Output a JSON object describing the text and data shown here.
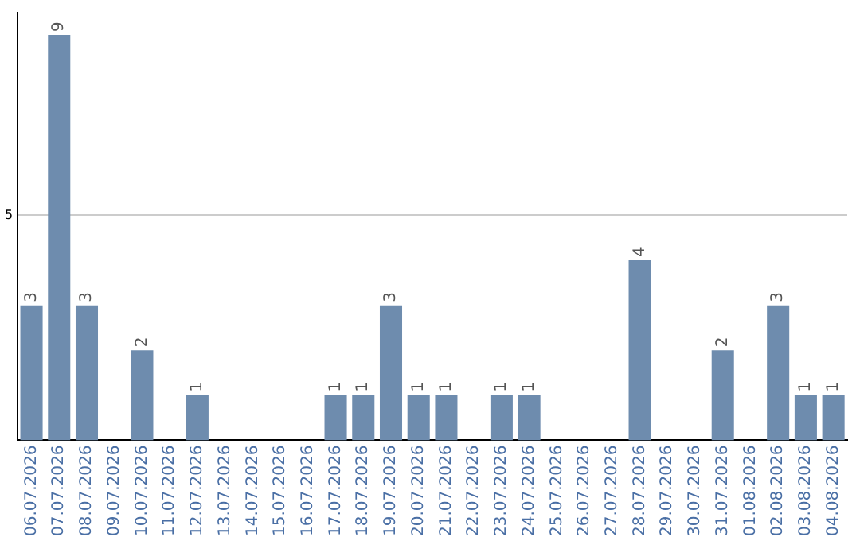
{
  "chart_data": {
    "type": "bar",
    "categories": [
      "06.07.2026",
      "07.07.2026",
      "08.07.2026",
      "09.07.2026",
      "10.07.2026",
      "11.07.2026",
      "12.07.2026",
      "13.07.2026",
      "14.07.2026",
      "15.07.2026",
      "16.07.2026",
      "17.07.2026",
      "18.07.2026",
      "19.07.2026",
      "20.07.2026",
      "21.07.2026",
      "22.07.2026",
      "23.07.2026",
      "24.07.2026",
      "25.07.2026",
      "26.07.2026",
      "27.07.2026",
      "28.07.2026",
      "29.07.2026",
      "30.07.2026",
      "31.07.2026",
      "01.08.2026",
      "02.08.2026",
      "03.08.2026",
      "04.08.2026"
    ],
    "values": [
      3,
      9,
      3,
      0,
      2,
      0,
      1,
      0,
      0,
      0,
      0,
      1,
      1,
      3,
      1,
      1,
      0,
      1,
      1,
      0,
      0,
      0,
      4,
      0,
      0,
      2,
      0,
      3,
      1,
      1
    ],
    "value_labels": [
      "3",
      "9",
      "3",
      null,
      "2",
      null,
      "1",
      null,
      null,
      null,
      null,
      "1",
      "1",
      "3",
      "1",
      "1",
      null,
      "1",
      "1",
      null,
      null,
      null,
      "4",
      null,
      null,
      "2",
      null,
      "3",
      "1",
      "1"
    ],
    "color": "#6e8cae",
    "ylim": [
      0,
      9.5
    ],
    "yticks": [
      5
    ],
    "grid": "y",
    "legend": false
  }
}
